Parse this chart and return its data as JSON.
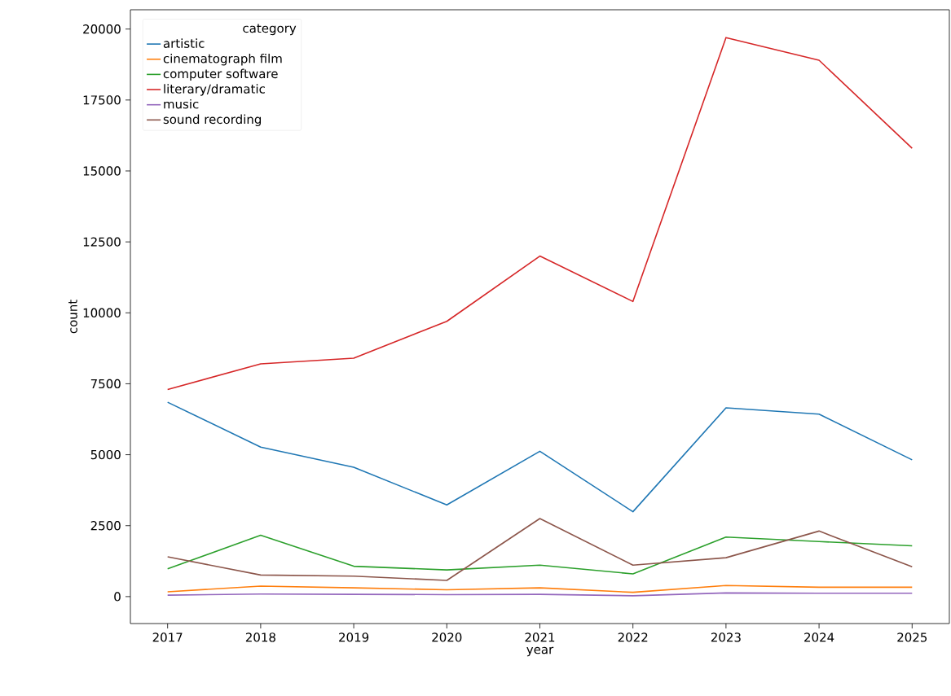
{
  "chart_data": {
    "type": "line",
    "xlabel": "year",
    "ylabel": "count",
    "legend_title": "category",
    "legend": "top left",
    "grid": false,
    "x": [
      2017,
      2018,
      2019,
      2020,
      2021,
      2022,
      2023,
      2024,
      2025
    ],
    "xlim": [
      2016.6,
      2025.4
    ],
    "xticks": [
      2017,
      2018,
      2019,
      2020,
      2021,
      2022,
      2023,
      2024,
      2025
    ],
    "ylim": [
      -950,
      20680
    ],
    "yticks": [
      0,
      2500,
      5000,
      7500,
      10000,
      12500,
      15000,
      17500,
      20000
    ],
    "series": [
      {
        "name": "artistic",
        "color": "#1f77b4",
        "values": [
          6850,
          5270,
          4560,
          3230,
          5120,
          2990,
          6650,
          6430,
          4820
        ]
      },
      {
        "name": "cinematograph film",
        "color": "#ff7f0e",
        "values": [
          170,
          370,
          310,
          240,
          310,
          150,
          390,
          330,
          330
        ]
      },
      {
        "name": "computer software",
        "color": "#2ca02c",
        "values": [
          980,
          2160,
          1070,
          940,
          1110,
          800,
          2100,
          1940,
          1790
        ]
      },
      {
        "name": "literary/dramatic",
        "color": "#d62728",
        "values": [
          7300,
          8200,
          8400,
          9700,
          12000,
          10400,
          19700,
          18900,
          15800
        ]
      },
      {
        "name": "music",
        "color": "#9467bd",
        "values": [
          50,
          90,
          80,
          70,
          80,
          30,
          130,
          120,
          120
        ]
      },
      {
        "name": "sound recording",
        "color": "#8c564b",
        "values": [
          1400,
          760,
          720,
          570,
          2750,
          1110,
          1370,
          2310,
          1050
        ]
      }
    ]
  }
}
